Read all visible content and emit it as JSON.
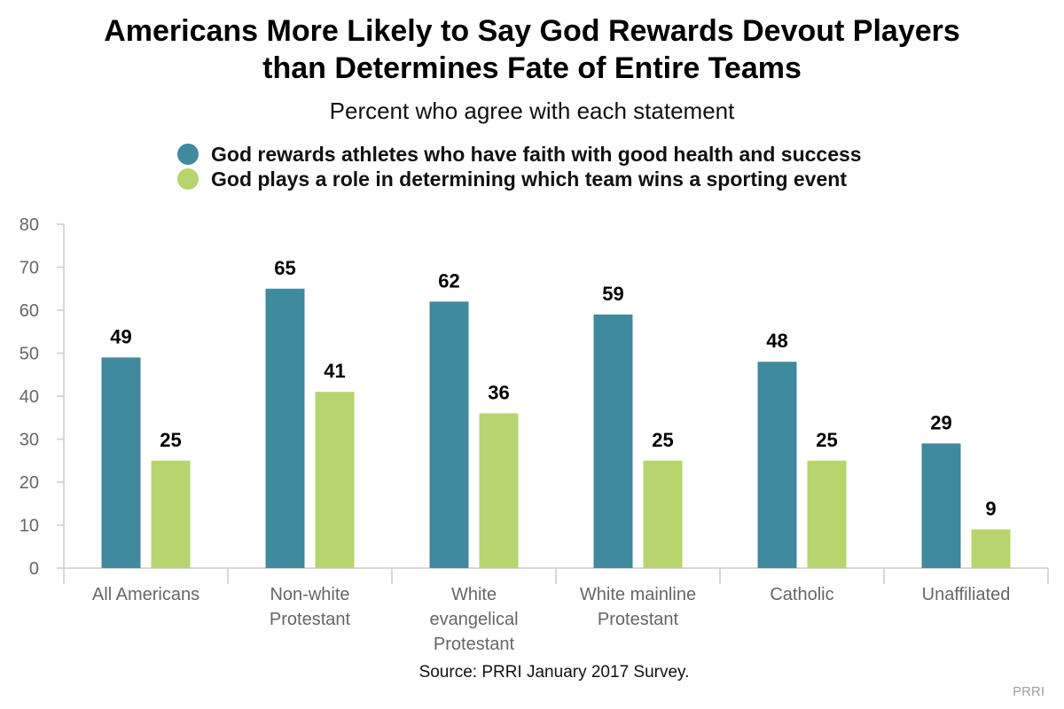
{
  "chart_data": {
    "type": "bar",
    "title_lines": [
      "Americans More Likely to Say God Rewards Devout Players",
      "than Determines Fate of Entire Teams"
    ],
    "subtitle": "Percent who agree with each statement",
    "categories": [
      [
        "All Americans"
      ],
      [
        "Non-white",
        "Protestant"
      ],
      [
        "White",
        "evangelical",
        "Protestant"
      ],
      [
        "White mainline",
        "Protestant"
      ],
      [
        "Catholic"
      ],
      [
        "Unaffiliated"
      ]
    ],
    "series": [
      {
        "name": "God rewards athletes who have faith with good health and success",
        "color": "#3f8a9e",
        "values": [
          49,
          65,
          62,
          59,
          48,
          29
        ]
      },
      {
        "name": "God plays a role in determining which team wins a sporting event",
        "color": "#b8d46e",
        "values": [
          25,
          41,
          36,
          25,
          25,
          9
        ]
      }
    ],
    "ylim": [
      0,
      80
    ],
    "yticks": [
      0,
      10,
      20,
      30,
      40,
      50,
      60,
      70,
      80
    ],
    "legend_position": "top",
    "grid": false
  },
  "source": "Source: PRRI January 2017 Survey.",
  "credit": "PRRI"
}
